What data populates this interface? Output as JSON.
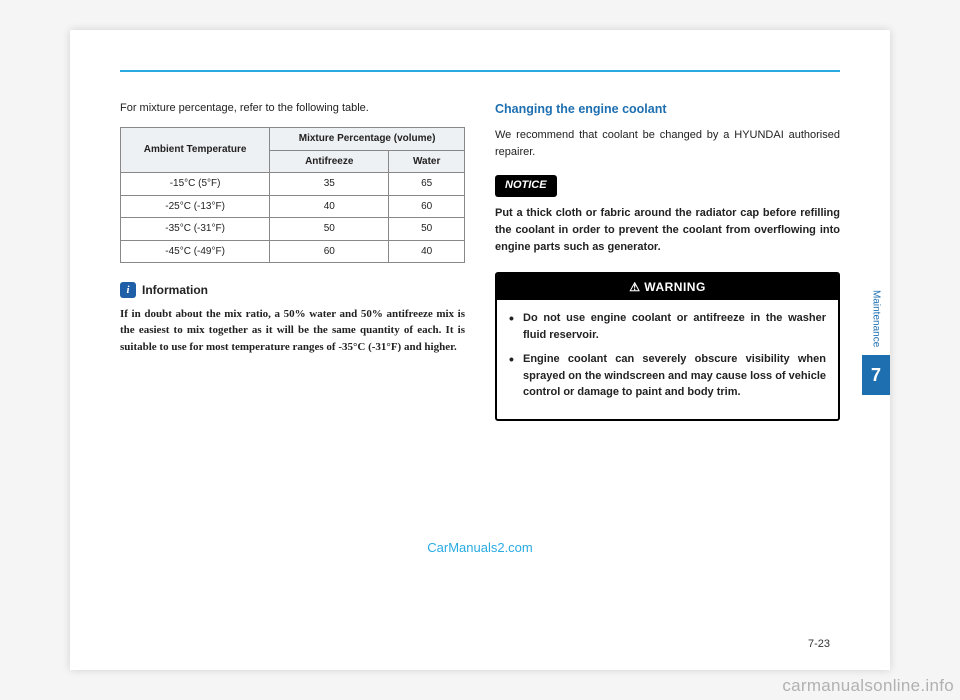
{
  "page": {
    "topRuleColor": "#29abe2",
    "sideLabel": "Maintenance",
    "sideNumber": "7",
    "pageNumber": "7-23",
    "centerWatermark": "CarManuals2.com",
    "cornerWatermark": "carmanualsonline.info"
  },
  "leftCol": {
    "intro": "For mixture percentage, refer to the following table.",
    "table": {
      "header1": "Ambient Temperature",
      "header2": "Mixture Percentage (volume)",
      "sub1": "Antifreeze",
      "sub2": "Water",
      "rows": [
        {
          "temp": "-15°C (5°F)",
          "af": "35",
          "w": "65"
        },
        {
          "temp": "-25°C (-13°F)",
          "af": "40",
          "w": "60"
        },
        {
          "temp": "-35°C (-31°F)",
          "af": "50",
          "w": "50"
        },
        {
          "temp": "-45°C (-49°F)",
          "af": "60",
          "w": "40"
        }
      ]
    },
    "info": {
      "title": "Information",
      "body": "If in doubt about the mix ratio, a 50% water and 50% antifreeze mix is the easiest to mix together as it will be the same quantity of each. It is suitable to use for most temperature ranges of -35°C (-31°F) and higher."
    }
  },
  "rightCol": {
    "heading": "Changing the engine coolant",
    "body": "We recommend that coolant be changed by a HYUNDAI authorised repairer.",
    "noticeLabel": "NOTICE",
    "noticeBody": "Put a thick cloth or fabric around the radiator cap before refilling the coolant in order to prevent the coolant from overflowing into engine parts such as generator.",
    "warningLabel": "WARNING",
    "warningItems": [
      "Do not use engine coolant or antifreeze in the washer fluid reservoir.",
      "Engine coolant can severely obscure visibility when sprayed on the windscreen and may cause loss of vehicle control or damage to paint and body trim."
    ]
  }
}
